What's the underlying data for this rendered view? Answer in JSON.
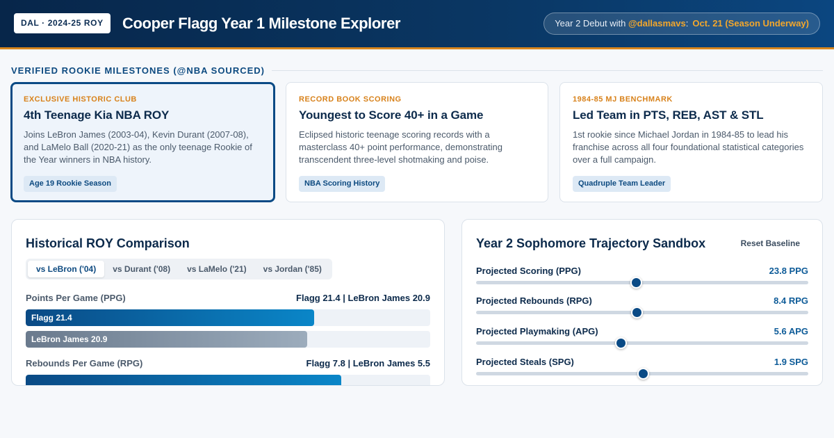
{
  "header": {
    "team_badge": "DAL · 2024-25 ROY",
    "title": "Cooper Flagg Year 1 Milestone Explorer",
    "debut_prefix": "Year 2 Debut with ",
    "debut_handle": "@dallasmavs",
    "debut_colon": ":",
    "debut_date": "Oct. 21 (Season Underway)"
  },
  "milestones": {
    "heading": "VERIFIED ROOKIE MILESTONES (@NBA SOURCED)",
    "cards": [
      {
        "kicker": "EXCLUSIVE HISTORIC CLUB",
        "title": "4th Teenage Kia NBA ROY",
        "description": "Joins LeBron James (2003-04), Kevin Durant (2007-08), and LaMelo Ball (2020-21) as the only teenage Rookie of the Year winners in NBA history.",
        "tag": "Age 19 Rookie Season"
      },
      {
        "kicker": "RECORD BOOK SCORING",
        "title": "Youngest to Score 40+ in a Game",
        "description": "Eclipsed historic teenage scoring records with a masterclass 40+ point performance, demonstrating transcendent three-level shotmaking and poise.",
        "tag": "NBA Scoring History"
      },
      {
        "kicker": "1984-85 MJ BENCHMARK",
        "title": "Led Team in PTS, REB, AST & STL",
        "description": "1st rookie since Michael Jordan in 1984-85 to lead his franchise across all four foundational statistical categories over a full campaign.",
        "tag": "Quadruple Team Leader"
      }
    ]
  },
  "comparison": {
    "title": "Historical ROY Comparison",
    "tabs": [
      "vs LeBron ('04)",
      "vs Durant ('08)",
      "vs LaMelo ('21)",
      "vs Jordan ('85)"
    ],
    "scale_max": 30,
    "metrics": [
      {
        "label": "Points Per Game (PPG)",
        "summary": "Flagg 21.4 | LeBron James 20.9",
        "flagg_label": "Flagg 21.4",
        "flagg_value": 21.4,
        "other_label": "LeBron James 20.9",
        "other_value": 20.9
      },
      {
        "label": "Rebounds Per Game (RPG)",
        "summary": "Flagg 7.8 | LeBron James 5.5",
        "flagg_label": "Flagg 7.8",
        "flagg_value": 7.8,
        "flagg_fraction": 0.78
      }
    ]
  },
  "sandbox": {
    "title": "Year 2 Sophomore Trajectory Sandbox",
    "reset_label": "Reset Baseline",
    "sliders": [
      {
        "label": "Projected Scoring (PPG)",
        "value": "23.8 PPG",
        "fraction": 0.482
      },
      {
        "label": "Projected Rebounds (RPG)",
        "value": "8.4 RPG",
        "fraction": 0.484
      },
      {
        "label": "Projected Playmaking (APG)",
        "value": "5.6 APG",
        "fraction": 0.435
      },
      {
        "label": "Projected Steals (SPG)",
        "value": "1.9 SPG",
        "fraction": 0.502
      }
    ]
  }
}
